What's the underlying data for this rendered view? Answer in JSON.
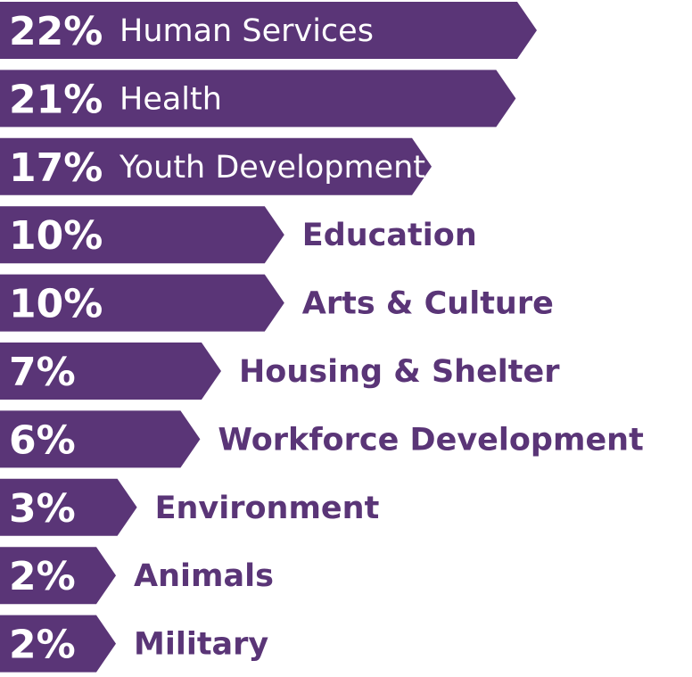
{
  "chart_data": {
    "type": "bar",
    "orientation": "horizontal",
    "categories": [
      "Human Services",
      "Health",
      "Youth Development",
      "Education",
      "Arts & Culture",
      "Housing & Shelter",
      "Workforce Development",
      "Environment",
      "Animals",
      "Military"
    ],
    "values": [
      22,
      21,
      17,
      10,
      10,
      7,
      6,
      3,
      2,
      2
    ],
    "value_labels": [
      "22%",
      "21%",
      "17%",
      "10%",
      "10%",
      "7%",
      "6%",
      "3%",
      "2%",
      "2%"
    ],
    "unit": "%",
    "color": "#5a3577",
    "label_text_color_inside": "#ffffff",
    "label_text_color_outside": "#5a3577",
    "title": "",
    "xlabel": "",
    "ylabel": "",
    "grid": false,
    "legend": "none"
  }
}
